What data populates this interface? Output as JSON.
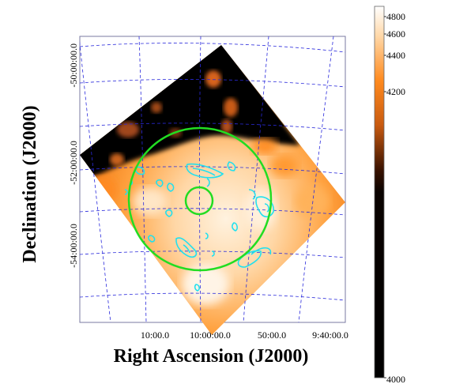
{
  "figure": {
    "xlabel": "Right Ascension (J2000)",
    "ylabel": "Declination (J2000)",
    "x_ticks": [
      "10:00.0",
      "10:00:00.0",
      "50:00.0",
      "9:40:00.0"
    ],
    "y_ticks": [
      "-50:00:00.0",
      "-52:00:00.0",
      "-54:00:00.0"
    ],
    "grid_color": "#2a2adc",
    "contour_color": "#22e0ee",
    "circle_color": "#22dd22"
  },
  "colorbar": {
    "labels": [
      "4800",
      "4600",
      "4400",
      "4200",
      "4000"
    ],
    "range": [
      4000,
      4850
    ],
    "stops": [
      "#000000",
      "#3a1200",
      "#c85a10",
      "#ff8a1e",
      "#ffd8a8",
      "#ffffff"
    ]
  }
}
